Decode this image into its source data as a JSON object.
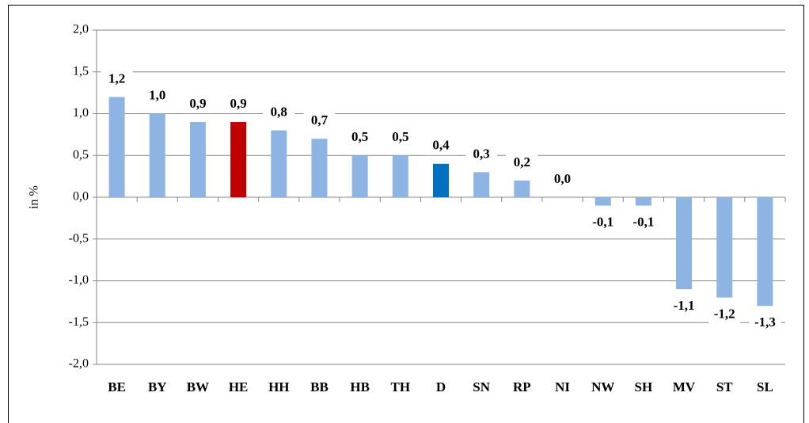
{
  "chart_data": {
    "type": "bar",
    "y_label": "in %",
    "categories": [
      "BE",
      "BY",
      "BW",
      "HE",
      "HH",
      "BB",
      "HB",
      "TH",
      "D",
      "SN",
      "RP",
      "NI",
      "NW",
      "SH",
      "MV",
      "ST",
      "SL"
    ],
    "values": [
      1.2,
      1.0,
      0.9,
      0.9,
      0.8,
      0.7,
      0.5,
      0.5,
      0.4,
      0.3,
      0.2,
      0.0,
      -0.1,
      -0.1,
      -1.1,
      -1.2,
      -1.3
    ],
    "value_labels": [
      "1,2",
      "1,0",
      "0,9",
      "0,9",
      "0,8",
      "0,7",
      "0,5",
      "0,5",
      "0,4",
      "0,3",
      "0,2",
      "0,0",
      "-0,1",
      "-0,1",
      "-1,1",
      "-1,2",
      "-1,3"
    ],
    "colors": [
      "#8db4e2",
      "#8db4e2",
      "#8db4e2",
      "#c00000",
      "#8db4e2",
      "#8db4e2",
      "#8db4e2",
      "#8db4e2",
      "#0070c0",
      "#8db4e2",
      "#8db4e2",
      "#8db4e2",
      "#8db4e2",
      "#8db4e2",
      "#8db4e2",
      "#8db4e2",
      "#8db4e2"
    ],
    "ylim": [
      -2,
      2
    ],
    "yticks": [
      {
        "value": -2,
        "label": "-2,0"
      },
      {
        "value": -1.5,
        "label": "-1,5"
      },
      {
        "value": -1,
        "label": "-1,0"
      },
      {
        "value": -0.5,
        "label": "-0,5"
      },
      {
        "value": 0,
        "label": "0,0"
      },
      {
        "value": 0.5,
        "label": "0,5"
      },
      {
        "value": 1,
        "label": "1,0"
      },
      {
        "value": 1.5,
        "label": "1,5"
      },
      {
        "value": 2,
        "label": "2,0"
      }
    ],
    "grid": true
  }
}
